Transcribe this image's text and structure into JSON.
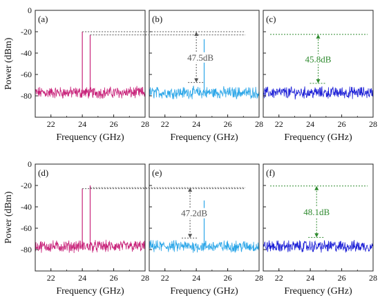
{
  "figure": {
    "y_axis_title": "Power (dBm)",
    "x_axis_title": "Frequency (GHz)"
  },
  "chart_data": [
    {
      "type": "line",
      "panel": "(a)",
      "xlim": [
        21,
        28
      ],
      "ylim": [
        -100,
        0
      ],
      "xticks": [
        "22",
        "24",
        "26",
        "28"
      ],
      "yticks": [
        "0",
        "-20",
        "-40",
        "-60",
        "-80"
      ],
      "xlabel": "Frequency (GHz)",
      "ylabel": "Power (dBm)",
      "series": [
        {
          "color": "#c8237a",
          "noise_floor": -77,
          "peaks": [
            {
              "x": 24.0,
              "y": -20
            },
            {
              "x": 24.5,
              "y": -23
            }
          ]
        }
      ],
      "annotation": null
    },
    {
      "type": "line",
      "panel": "(b)",
      "xlim": [
        21,
        28
      ],
      "ylim": [
        -100,
        0
      ],
      "xticks": [
        "22",
        "24",
        "26",
        "28"
      ],
      "yticks": [],
      "xlabel": "Frequency (GHz)",
      "ylabel": "",
      "series": [
        {
          "color": "#2ba6e8",
          "noise_floor": -77,
          "peaks": [
            {
              "x": 24.5,
              "y": -27
            }
          ]
        }
      ],
      "annotation": {
        "label": "47.5dB",
        "x": 24.0,
        "top": -20,
        "bottom": -67.5,
        "color": "#555555",
        "ref_line_from_panel": "a"
      }
    },
    {
      "type": "line",
      "panel": "(c)",
      "xlim": [
        21,
        28
      ],
      "ylim": [
        -100,
        0
      ],
      "xticks": [
        "22",
        "24",
        "26",
        "28"
      ],
      "yticks": [],
      "xlabel": "Frequency (GHz)",
      "ylabel": "",
      "series": [
        {
          "color": "#1c1fd6",
          "noise_floor": -77,
          "peaks": []
        }
      ],
      "annotation": {
        "label": "45.8dB",
        "x": 24.5,
        "top": -22.5,
        "bottom": -68.3,
        "color": "#2f8a2f",
        "ref_line_from_panel": null
      }
    },
    {
      "type": "line",
      "panel": "(d)",
      "xlim": [
        21,
        28
      ],
      "ylim": [
        -100,
        0
      ],
      "xticks": [
        "22",
        "24",
        "26",
        "28"
      ],
      "yticks": [
        "0",
        "-20",
        "-40",
        "-60",
        "-80"
      ],
      "xlabel": "Frequency (GHz)",
      "ylabel": "Power (dBm)",
      "series": [
        {
          "color": "#c8237a",
          "noise_floor": -77,
          "peaks": [
            {
              "x": 24.0,
              "y": -23
            },
            {
              "x": 24.5,
              "y": -20
            }
          ]
        }
      ],
      "annotation": null
    },
    {
      "type": "line",
      "panel": "(e)",
      "xlim": [
        21,
        28
      ],
      "ylim": [
        -100,
        0
      ],
      "xticks": [
        "22",
        "24",
        "26",
        "28"
      ],
      "yticks": [],
      "xlabel": "Frequency (GHz)",
      "ylabel": "",
      "series": [
        {
          "color": "#2ba6e8",
          "noise_floor": -77,
          "peaks": [
            {
              "x": 24.5,
              "y": -34
            }
          ]
        }
      ],
      "annotation": {
        "label": "47.2dB",
        "x": 23.6,
        "top": -22,
        "bottom": -69.2,
        "color": "#555555",
        "ref_line_from_panel": "d"
      }
    },
    {
      "type": "line",
      "panel": "(f)",
      "xlim": [
        21,
        28
      ],
      "ylim": [
        -100,
        0
      ],
      "xticks": [
        "22",
        "24",
        "26",
        "28"
      ],
      "yticks": [],
      "xlabel": "Frequency (GHz)",
      "ylabel": "",
      "series": [
        {
          "color": "#1c1fd6",
          "noise_floor": -77,
          "peaks": []
        }
      ],
      "annotation": {
        "label": "48.1dB",
        "x": 24.4,
        "top": -20.5,
        "bottom": -68.6,
        "color": "#2f8a2f",
        "ref_line_from_panel": null
      }
    }
  ]
}
